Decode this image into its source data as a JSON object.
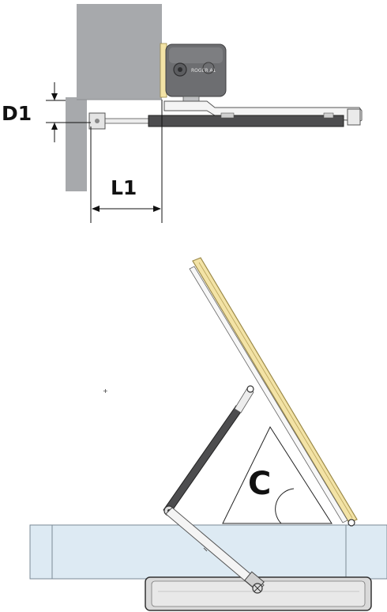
{
  "top_view": {
    "label_d1": "D1",
    "label_l1": "L1",
    "motor_text": "ROGER A1"
  },
  "side_view": {
    "label_c": "C"
  },
  "colors": {
    "wall": "#a7a9ac",
    "wall_dark": "#8d8f92",
    "motor": "#6d6e71",
    "motor_dark": "#4a4b4d",
    "gate_yellow": "#f3e3a6",
    "gate_edge": "#9c8a4a",
    "rod": "#3a3a3a",
    "sill": "#ddeaf3",
    "sill_edge": "#7a8a96",
    "base": "#d9d9d9"
  }
}
